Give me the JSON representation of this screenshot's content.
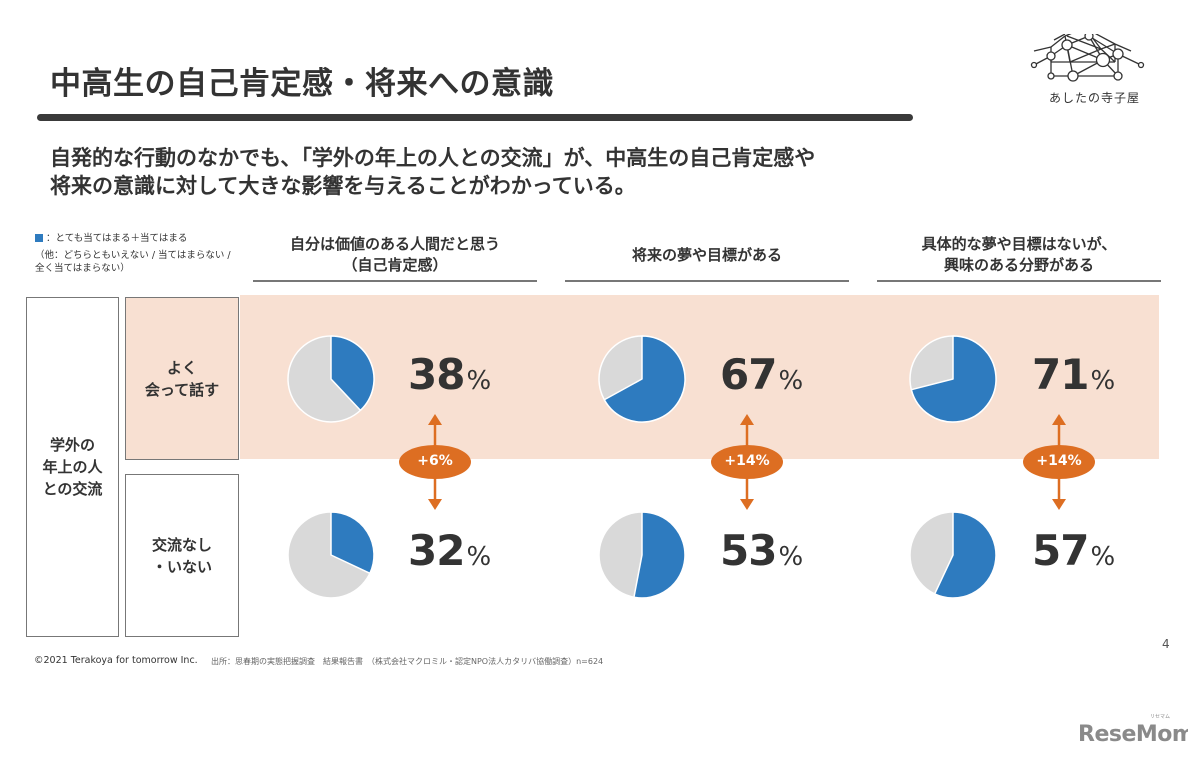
{
  "slide": {
    "title": "中高生の自己肯定感・将来への意識",
    "lead_lines": [
      "自発的な行動のなかでも、「学外の年上の人との交流」が、中高生の自己肯定感や",
      "将来の意識に対して大きな影響を与えることがわかっている。"
    ],
    "logo_text": "あしたの寺子屋",
    "page_number": "4",
    "footer_copyright": "©2021 Terakoya for tomorrow Inc.",
    "footer_source": "出所：思春期の実態把握調査　結果報告書　（株式会社マクロミル・認定NPO法人カタリバ協働調査）n=624",
    "brand": "ReseMom",
    "brand_ruby": "リセマム"
  },
  "legend": {
    "main": "：とても当てはまる＋当てはまる",
    "note": "（他：どちらともいえない / 当てはまらない / 全く当てはまらない）"
  },
  "colors": {
    "positive": "#2e7bbf",
    "other": "#d9d9d9",
    "accent": "#dd6e22",
    "band": "#f8e0d2"
  },
  "chart_data": {
    "type": "pie",
    "title": "中高生の自己肯定感・将来への意識",
    "group_label": "学外の年上の人との交流",
    "rows": [
      "よく会って話す",
      "交流なし・いない"
    ],
    "columns": [
      "自分は価値のある人間だと思う（自己肯定感）",
      "将来の夢や目標がある",
      "具体的な夢や目標はないが、興味のある分野がある"
    ],
    "column_lines": [
      [
        "自分は価値のある人間だと思う",
        "（自己肯定感）"
      ],
      [
        "将来の夢や目標がある"
      ],
      [
        "具体的な夢や目標はないが、",
        "興味のある分野がある"
      ]
    ],
    "row_lines": [
      [
        "よく",
        "会って話す"
      ],
      [
        "交流なし",
        "・いない"
      ]
    ],
    "group_lines": [
      "学外の",
      "年上の人",
      "との交流"
    ],
    "series": [
      {
        "name": "よく会って話す",
        "values": [
          38,
          67,
          71
        ]
      },
      {
        "name": "交流なし・いない",
        "values": [
          32,
          53,
          57
        ]
      }
    ],
    "differences": [
      "+6%",
      "+14%",
      "+14%"
    ],
    "unit": "%",
    "legend": [
      "とても当てはまる＋当てはまる",
      "他：どちらともいえない / 当てはまらない / 全く当てはまらない"
    ]
  }
}
